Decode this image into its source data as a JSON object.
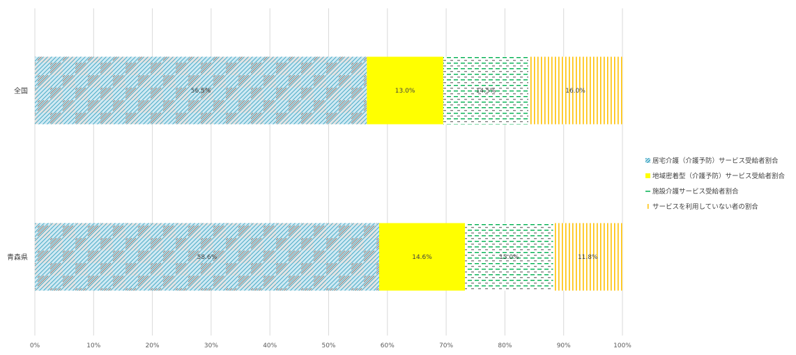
{
  "chart_data": {
    "type": "bar",
    "orientation": "horizontal",
    "stacked": "100%",
    "categories": [
      "全国",
      "青森県"
    ],
    "series": [
      {
        "name": "居宅介護（介護予防）サービス受給者割合",
        "values": [
          56.5,
          58.6
        ],
        "labels": [
          "56.5%",
          "58.6%"
        ],
        "color": "#4bacc6",
        "pattern": "checker-diagonal"
      },
      {
        "name": "地域密着型（介護予防）サービス受給者割合",
        "values": [
          13.0,
          14.6
        ],
        "labels": [
          "13.0%",
          "14.6%"
        ],
        "color": "#ffff00",
        "pattern": "solid"
      },
      {
        "name": "施設介護サービス受給者割合",
        "values": [
          14.5,
          15.0
        ],
        "labels": [
          "14.5%",
          "15.0%"
        ],
        "color": "#00b050",
        "pattern": "dashes"
      },
      {
        "name": "サービスを利用していない者の割合",
        "values": [
          16.0,
          11.8
        ],
        "labels": [
          "16.0%",
          "11.8%"
        ],
        "color": "#ffc000",
        "pattern": "vertical-lines"
      }
    ],
    "xaxis": {
      "ticks": [
        "0%",
        "10%",
        "20%",
        "30%",
        "40%",
        "50%",
        "60%",
        "70%",
        "80%",
        "90%",
        "100%"
      ],
      "range": [
        0,
        100
      ]
    },
    "grid": "vertical",
    "legend": "right"
  }
}
